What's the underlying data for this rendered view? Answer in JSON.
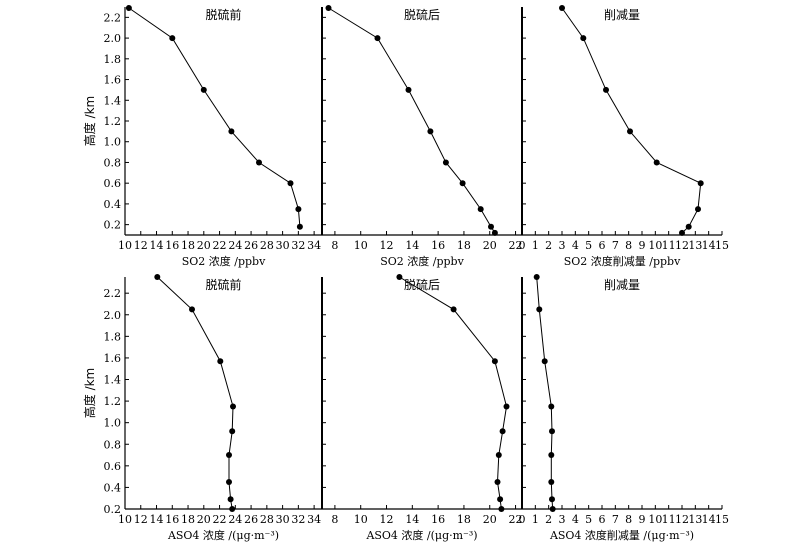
{
  "chart_data": [
    {
      "type": "line",
      "row": 0,
      "col": 0,
      "title": "脱硫前",
      "xlabel": "SO2 浓度 /ppbv",
      "ylabel": "高度 /km",
      "xlim": [
        10,
        35
      ],
      "ylim": [
        0.1,
        2.3
      ],
      "xticks": [
        10,
        12,
        14,
        16,
        18,
        20,
        22,
        24,
        26,
        28,
        30,
        32,
        34
      ],
      "yticks": [
        0.2,
        0.4,
        0.6,
        0.8,
        1.0,
        1.2,
        1.4,
        1.6,
        1.8,
        2.0,
        2.2
      ],
      "series": [
        {
          "x": [
            10.5,
            16.0,
            20.0,
            23.5,
            27.0,
            31.0,
            32.0,
            32.2
          ],
          "y": [
            2.29,
            2.0,
            1.5,
            1.1,
            0.8,
            0.6,
            0.35,
            0.18
          ]
        }
      ]
    },
    {
      "type": "line",
      "row": 0,
      "col": 1,
      "title": "脱硫后",
      "xlabel": "SO2 浓度 /ppbv",
      "ylabel": "",
      "xlim": [
        7,
        22.5
      ],
      "ylim": [
        0.1,
        2.3
      ],
      "xticks": [
        8,
        10,
        12,
        14,
        16,
        18,
        20,
        22
      ],
      "yticks": [
        0.2,
        0.4,
        0.6,
        0.8,
        1.0,
        1.2,
        1.4,
        1.6,
        1.8,
        2.0,
        2.2
      ],
      "series": [
        {
          "x": [
            7.5,
            11.3,
            13.7,
            15.4,
            16.6,
            17.9,
            19.3,
            20.1,
            20.4
          ],
          "y": [
            2.29,
            2.0,
            1.5,
            1.1,
            0.8,
            0.6,
            0.35,
            0.18,
            0.12
          ]
        }
      ]
    },
    {
      "type": "line",
      "row": 0,
      "col": 2,
      "title": "削减量",
      "xlabel": "SO2 浓度削减量 /ppbv",
      "ylabel": "",
      "xlim": [
        0,
        15
      ],
      "ylim": [
        0.1,
        2.3
      ],
      "xticks": [
        0,
        1,
        2,
        3,
        4,
        5,
        6,
        7,
        8,
        9,
        10,
        11,
        12,
        13,
        14,
        15
      ],
      "yticks": [
        0.2,
        0.4,
        0.6,
        0.8,
        1.0,
        1.2,
        1.4,
        1.6,
        1.8,
        2.0,
        2.2
      ],
      "series": [
        {
          "x": [
            3.0,
            4.6,
            6.3,
            8.1,
            10.1,
            13.4,
            13.2,
            12.5,
            12.0
          ],
          "y": [
            2.29,
            2.0,
            1.5,
            1.1,
            0.8,
            0.6,
            0.35,
            0.18,
            0.12
          ]
        }
      ]
    },
    {
      "type": "line",
      "row": 1,
      "col": 0,
      "title": "脱硫前",
      "xlabel": "ASO4 浓度 /(μg·m⁻³)",
      "ylabel": "高度 /km",
      "xlim": [
        10,
        35
      ],
      "ylim": [
        0.2,
        2.35
      ],
      "xticks": [
        10,
        12,
        14,
        16,
        18,
        20,
        22,
        24,
        26,
        28,
        30,
        32,
        34
      ],
      "yticks": [
        0.2,
        0.4,
        0.6,
        0.8,
        1.0,
        1.2,
        1.4,
        1.6,
        1.8,
        2.0,
        2.2
      ],
      "series": [
        {
          "x": [
            14.1,
            18.5,
            22.1,
            23.7,
            23.6,
            23.2,
            23.2,
            23.4,
            23.6
          ],
          "y": [
            2.35,
            2.05,
            1.57,
            1.15,
            0.92,
            0.7,
            0.45,
            0.29,
            0.2
          ]
        }
      ]
    },
    {
      "type": "line",
      "row": 1,
      "col": 1,
      "title": "脱硫后",
      "xlabel": "ASO4 浓度 /(μg·m⁻³)",
      "ylabel": "",
      "xlim": [
        7,
        22.5
      ],
      "ylim": [
        0.2,
        2.35
      ],
      "xticks": [
        8,
        10,
        12,
        14,
        16,
        18,
        20,
        22
      ],
      "yticks": [
        0.2,
        0.4,
        0.6,
        0.8,
        1.0,
        1.2,
        1.4,
        1.6,
        1.8,
        2.0,
        2.2
      ],
      "series": [
        {
          "x": [
            13.0,
            17.2,
            20.4,
            21.3,
            21.0,
            20.7,
            20.6,
            20.8,
            20.9
          ],
          "y": [
            2.35,
            2.05,
            1.57,
            1.15,
            0.92,
            0.7,
            0.45,
            0.29,
            0.2
          ]
        }
      ]
    },
    {
      "type": "line",
      "row": 1,
      "col": 2,
      "title": "削减量",
      "xlabel": "ASO4 浓度削减量 /(μg·m⁻³)",
      "ylabel": "",
      "xlim": [
        0,
        15
      ],
      "ylim": [
        0.2,
        2.35
      ],
      "xticks": [
        0,
        1,
        2,
        3,
        4,
        5,
        6,
        7,
        8,
        9,
        10,
        11,
        12,
        13,
        14,
        15
      ],
      "yticks": [
        0.2,
        0.4,
        0.6,
        0.8,
        1.0,
        1.2,
        1.4,
        1.6,
        1.8,
        2.0,
        2.2
      ],
      "series": [
        {
          "x": [
            1.1,
            1.3,
            1.7,
            2.2,
            2.25,
            2.2,
            2.2,
            2.25,
            2.3
          ],
          "y": [
            2.35,
            2.05,
            1.57,
            1.15,
            0.92,
            0.7,
            0.45,
            0.29,
            0.2
          ]
        }
      ]
    }
  ]
}
